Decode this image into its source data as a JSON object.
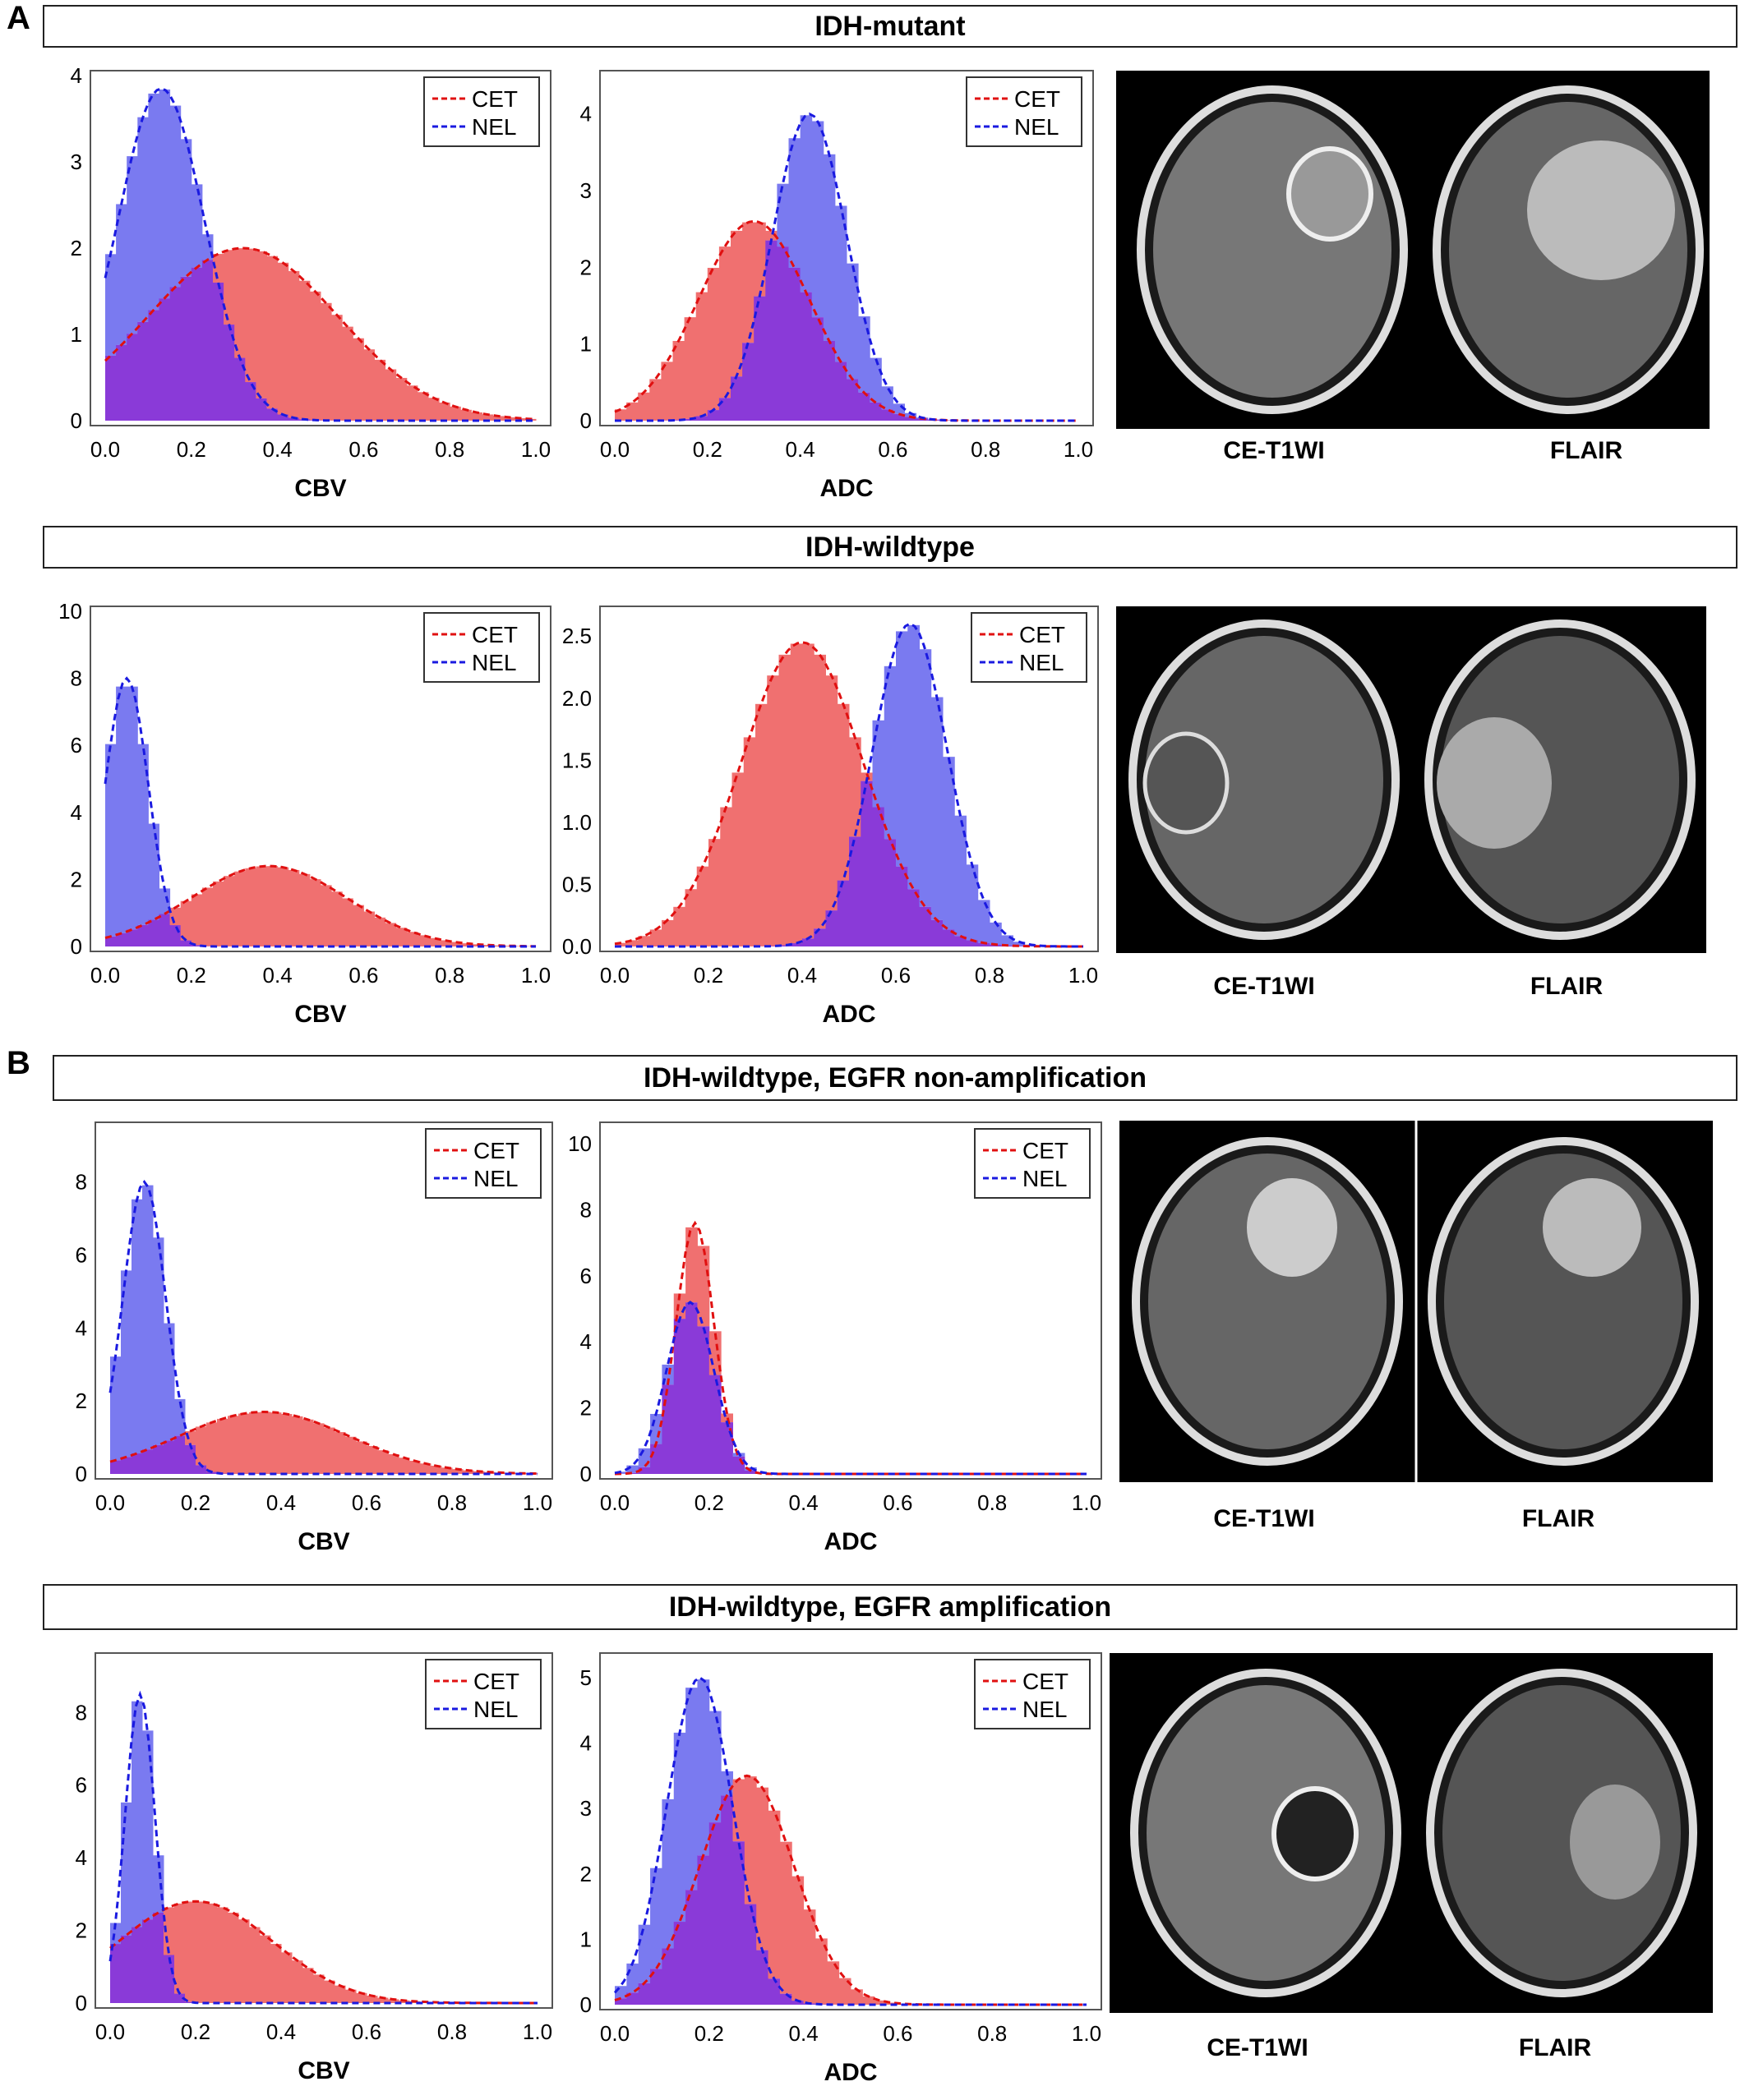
{
  "panels": [
    {
      "letter": "A"
    },
    {
      "letter": "B"
    }
  ],
  "rows": [
    {
      "title": "IDH-mutant",
      "cap1": "CE-T1WI",
      "cap2": "FLAIR"
    },
    {
      "title": "IDH-wildtype",
      "cap1": "CE-T1WI",
      "cap2": "FLAIR"
    },
    {
      "title": "IDH-wildtype, EGFR non-amplification",
      "cap1": "CE-T1WI",
      "cap2": "FLAIR"
    },
    {
      "title": "IDH-wildtype, EGFR amplification",
      "cap1": "CE-T1WI",
      "cap2": "FLAIR"
    }
  ],
  "colors": {
    "cet": "#f07070",
    "nel": "#7a7af0",
    "overlap": "#8a3ad8",
    "cet_line": "#e01010",
    "nel_line": "#1a1ae0"
  },
  "chart_data": [
    {
      "type": "histogram",
      "xlabel": "CBV",
      "xlim": [
        0,
        1
      ],
      "ylim": [
        0,
        4
      ],
      "yticks": [
        0,
        1,
        2,
        3,
        4
      ],
      "xticks": [
        "0.0",
        "0.2",
        "0.4",
        "0.6",
        "0.8",
        "1.0"
      ],
      "legend": "top-right",
      "series": [
        {
          "name": "CET",
          "peak": 0.32,
          "width": 0.22,
          "height": 2.0
        },
        {
          "name": "NEL",
          "peak": 0.13,
          "width": 0.1,
          "height": 3.85
        }
      ]
    },
    {
      "type": "histogram",
      "xlabel": "ADC",
      "xlim": [
        0,
        1
      ],
      "ylim": [
        0,
        4.5
      ],
      "yticks": [
        0,
        1,
        2,
        3,
        4
      ],
      "xticks": [
        "0.0",
        "0.2",
        "0.4",
        "0.6",
        "0.8",
        "1.0"
      ],
      "legend": "top-right",
      "series": [
        {
          "name": "CET",
          "peak": 0.3,
          "width": 0.12,
          "height": 2.6
        },
        {
          "name": "NEL",
          "peak": 0.42,
          "width": 0.08,
          "height": 4.0
        }
      ]
    },
    {
      "type": "histogram",
      "xlabel": "CBV",
      "xlim": [
        0,
        1
      ],
      "ylim": [
        0,
        10
      ],
      "yticks": [
        0,
        2,
        4,
        6,
        8,
        10
      ],
      "xticks": [
        "0.0",
        "0.2",
        "0.4",
        "0.6",
        "0.8",
        "1.0"
      ],
      "legend": "top-right",
      "series": [
        {
          "name": "CET",
          "peak": 0.38,
          "width": 0.18,
          "height": 2.4
        },
        {
          "name": "NEL",
          "peak": 0.05,
          "width": 0.05,
          "height": 8.0
        }
      ]
    },
    {
      "type": "histogram",
      "xlabel": "ADC",
      "xlim": [
        0,
        1
      ],
      "ylim": [
        0,
        2.7
      ],
      "yticks": [
        "0.0",
        "0.5",
        "1.0",
        "1.5",
        "2.0",
        "2.5"
      ],
      "xticks": [
        "0.0",
        "0.2",
        "0.4",
        "0.6",
        "0.8",
        "1.0"
      ],
      "legend": "top-right",
      "series": [
        {
          "name": "CET",
          "peak": 0.4,
          "width": 0.13,
          "height": 2.45
        },
        {
          "name": "NEL",
          "peak": 0.63,
          "width": 0.08,
          "height": 2.6
        }
      ]
    },
    {
      "type": "histogram",
      "xlabel": "CBV",
      "xlim": [
        0,
        1
      ],
      "ylim": [
        0,
        9.5
      ],
      "yticks": [
        0,
        2,
        4,
        6,
        8
      ],
      "xticks": [
        "0.0",
        "0.2",
        "0.4",
        "0.6",
        "0.8",
        "1.0"
      ],
      "legend": "top-right",
      "series": [
        {
          "name": "CET",
          "peak": 0.36,
          "width": 0.2,
          "height": 1.7
        },
        {
          "name": "NEL",
          "peak": 0.08,
          "width": 0.05,
          "height": 8.0
        }
      ]
    },
    {
      "type": "histogram",
      "xlabel": "ADC",
      "xlim": [
        0,
        1
      ],
      "ylim": [
        0,
        10.5
      ],
      "yticks": [
        0,
        2,
        4,
        6,
        8,
        10
      ],
      "xticks": [
        "0.0",
        "0.2",
        "0.4",
        "0.6",
        "0.8",
        "1.0"
      ],
      "legend": "top-right",
      "series": [
        {
          "name": "CET",
          "peak": 0.17,
          "width": 0.04,
          "height": 7.6
        },
        {
          "name": "NEL",
          "peak": 0.16,
          "width": 0.05,
          "height": 5.2
        }
      ]
    },
    {
      "type": "histogram",
      "xlabel": "CBV",
      "xlim": [
        0,
        1
      ],
      "ylim": [
        0,
        9.5
      ],
      "yticks": [
        0,
        2,
        4,
        6,
        8
      ],
      "xticks": [
        "0.0",
        "0.2",
        "0.4",
        "0.6",
        "0.8",
        "1.0"
      ],
      "legend": "top-right",
      "series": [
        {
          "name": "CET",
          "peak": 0.2,
          "width": 0.18,
          "height": 2.8
        },
        {
          "name": "NEL",
          "peak": 0.07,
          "width": 0.035,
          "height": 8.5
        }
      ]
    },
    {
      "type": "histogram",
      "xlabel": "ADC",
      "xlim": [
        0,
        1
      ],
      "ylim": [
        0,
        5.3
      ],
      "yticks": [
        0,
        1,
        2,
        3,
        4,
        5
      ],
      "xticks": [
        "0.0",
        "0.2",
        "0.4",
        "0.6",
        "0.8",
        "1.0"
      ],
      "legend": "top-right",
      "series": [
        {
          "name": "CET",
          "peak": 0.28,
          "width": 0.1,
          "height": 3.5
        },
        {
          "name": "NEL",
          "peak": 0.18,
          "width": 0.07,
          "height": 5.0
        }
      ]
    }
  ]
}
